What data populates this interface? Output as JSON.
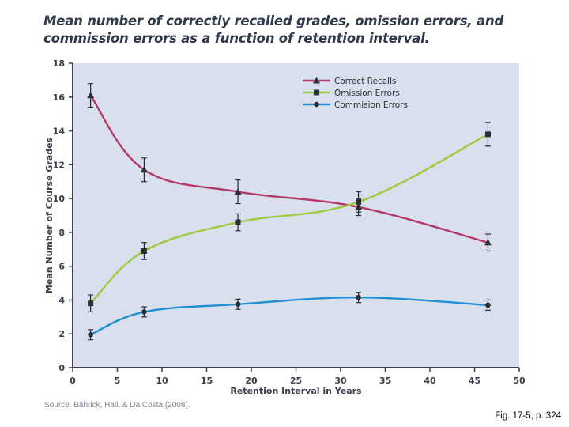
{
  "chart_data": {
    "type": "line",
    "title": "Mean number of correctly recalled grades, omission errors, and commission errors as a function of retention interval.",
    "xlabel": "Retention Interval in Years",
    "ylabel": "Mean Number of Course Grades",
    "xlim": [
      0,
      50
    ],
    "ylim": [
      0,
      18
    ],
    "xticks": [
      0,
      5,
      10,
      15,
      20,
      25,
      30,
      35,
      40,
      45,
      50
    ],
    "yticks": [
      0,
      2,
      4,
      6,
      8,
      10,
      12,
      14,
      16,
      18
    ],
    "grid": false,
    "legend_position": "top-right",
    "x": [
      2,
      8,
      18.5,
      32,
      46.5
    ],
    "series": [
      {
        "name": "Correct Recalls",
        "color": "#b23a6a",
        "marker": "triangle",
        "values": [
          16.1,
          11.7,
          10.4,
          9.5,
          7.4
        ],
        "errors": [
          0.7,
          0.7,
          0.7,
          0.5,
          0.5
        ]
      },
      {
        "name": "Omission Errors",
        "color": "#9ccb3c",
        "marker": "square",
        "values": [
          3.8,
          6.9,
          8.6,
          9.8,
          13.8
        ],
        "errors": [
          0.5,
          0.5,
          0.5,
          0.6,
          0.7
        ]
      },
      {
        "name": "Commision Errors",
        "color": "#1f8fcf",
        "marker": "circle",
        "values": [
          1.95,
          3.3,
          3.75,
          4.15,
          3.7
        ],
        "errors": [
          0.3,
          0.3,
          0.3,
          0.3,
          0.3
        ]
      }
    ]
  },
  "source": "Source: Bahrick, Hall, & Da Costa (2008).",
  "caption": "Fig. 17-5, p. 324",
  "colors": {
    "plot_background": "#dadfee",
    "axis": "#3a3f4a"
  }
}
